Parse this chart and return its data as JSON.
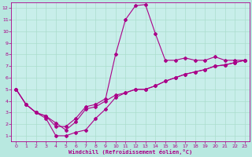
{
  "xlabel": "Windchill (Refroidissement éolien,°C)",
  "bg_color": "#b8e8e0",
  "plot_bg_color": "#c8eeea",
  "line_color": "#aa0088",
  "grid_color": "#aaddcc",
  "xlim": [
    -0.5,
    23.5
  ],
  "ylim": [
    0.5,
    12.5
  ],
  "xticks": [
    0,
    1,
    2,
    3,
    4,
    5,
    6,
    7,
    8,
    9,
    10,
    11,
    12,
    13,
    14,
    15,
    16,
    17,
    18,
    19,
    20,
    21,
    22,
    23
  ],
  "yticks": [
    1,
    2,
    3,
    4,
    5,
    6,
    7,
    8,
    9,
    10,
    11,
    12
  ],
  "line1_x": [
    0,
    1,
    2,
    3,
    4,
    5,
    6,
    7,
    8,
    9,
    10,
    11,
    12,
    13,
    14,
    15,
    16,
    17,
    18,
    19,
    20,
    21,
    22,
    23
  ],
  "line1_y": [
    5.0,
    3.7,
    3.0,
    2.7,
    2.1,
    1.5,
    2.2,
    3.3,
    3.5,
    4.0,
    4.5,
    4.7,
    5.0,
    5.0,
    5.3,
    5.7,
    6.0,
    6.3,
    6.5,
    6.7,
    7.0,
    7.1,
    7.3,
    7.5
  ],
  "line2_x": [
    0,
    1,
    2,
    3,
    4,
    5,
    6,
    7,
    8,
    9,
    10,
    11,
    12,
    13,
    14,
    15,
    16,
    17,
    18,
    19,
    20,
    21,
    22,
    23
  ],
  "line2_y": [
    5.0,
    3.7,
    3.0,
    2.7,
    1.8,
    1.8,
    2.5,
    3.5,
    3.7,
    4.2,
    8.0,
    11.0,
    12.2,
    12.3,
    9.8,
    7.5,
    7.5,
    7.7,
    7.5,
    7.5,
    7.8,
    7.5,
    7.5,
    7.5
  ],
  "line3_x": [
    0,
    1,
    2,
    3,
    4,
    5,
    6,
    7,
    8,
    9,
    10,
    11,
    12,
    13,
    14,
    15,
    16,
    17,
    18,
    19,
    20,
    21,
    22,
    23
  ],
  "line3_y": [
    5.0,
    3.7,
    3.0,
    2.5,
    1.0,
    1.0,
    1.3,
    1.5,
    2.5,
    3.3,
    4.3,
    4.7,
    5.0,
    5.0,
    5.3,
    5.7,
    6.0,
    6.3,
    6.5,
    6.7,
    7.0,
    7.1,
    7.3,
    7.5
  ]
}
